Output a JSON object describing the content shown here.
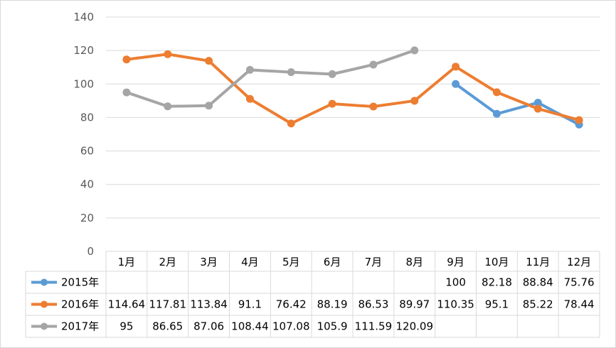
{
  "chart_data": {
    "type": "line",
    "categories": [
      "1月",
      "2月",
      "3月",
      "4月",
      "5月",
      "6月",
      "7月",
      "8月",
      "9月",
      "10月",
      "11月",
      "12月"
    ],
    "ylim": [
      0,
      140
    ],
    "yticks": [
      "0",
      "20",
      "40",
      "60",
      "80",
      "100",
      "120",
      "140"
    ],
    "grid": true,
    "legend": "data-table",
    "series": [
      {
        "name": "2015年",
        "color": "#5b9bd5",
        "values": [
          null,
          null,
          null,
          null,
          null,
          null,
          null,
          null,
          100,
          82.18,
          88.84,
          75.76
        ],
        "labels": [
          "",
          "",
          "",
          "",
          "",
          "",
          "",
          "",
          "100",
          "82.18",
          "88.84",
          "75.76"
        ]
      },
      {
        "name": "2016年",
        "color": "#ed7d31",
        "values": [
          114.64,
          117.81,
          113.84,
          91.1,
          76.42,
          88.19,
          86.53,
          89.97,
          110.35,
          95.1,
          85.22,
          78.44
        ],
        "labels": [
          "114.64",
          "117.81",
          "113.84",
          "91.1",
          "76.42",
          "88.19",
          "86.53",
          "89.97",
          "110.35",
          "95.1",
          "85.22",
          "78.44"
        ]
      },
      {
        "name": "2017年",
        "color": "#a5a5a5",
        "values": [
          95,
          86.65,
          87.06,
          108.44,
          107.08,
          105.9,
          111.59,
          120.09,
          null,
          null,
          null,
          null
        ],
        "labels": [
          "95",
          "86.65",
          "87.06",
          "108.44",
          "107.08",
          "105.9",
          "111.59",
          "120.09",
          "",
          "",
          "",
          ""
        ]
      }
    ]
  }
}
